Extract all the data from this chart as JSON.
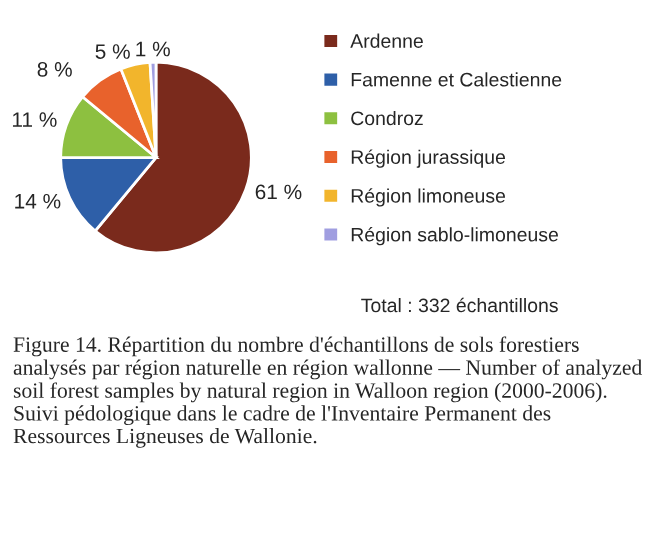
{
  "chart_data": {
    "type": "pie",
    "categories": [
      "Ardenne",
      "Famenne et Calestienne",
      "Condroz",
      "Région jurassique",
      "Région limoneuse",
      "Région sablo-limoneuse"
    ],
    "values": [
      61,
      14,
      11,
      8,
      5,
      1
    ],
    "colors": [
      "#7a2a1c",
      "#2e5fa8",
      "#8dc040",
      "#e8622c",
      "#f2b52c",
      "#a09ee0"
    ],
    "value_labels": [
      "61 %",
      "14 %",
      "11 %",
      "8 %",
      "5 %",
      "1 %"
    ],
    "legend": "right",
    "annotations": [
      "Total : 332 échantillons",
      "Figure 14. Répartition du nombre d'échantillons de sols forestiers analysés par région naturelle en région wallonne — Number of analyzed soil forest samples by natural region in Walloon region (2000-2006). Suivi pédologique dans le cadre de l'Inventaire Permanent des Ressources Ligneuses de Wallonie."
    ]
  }
}
